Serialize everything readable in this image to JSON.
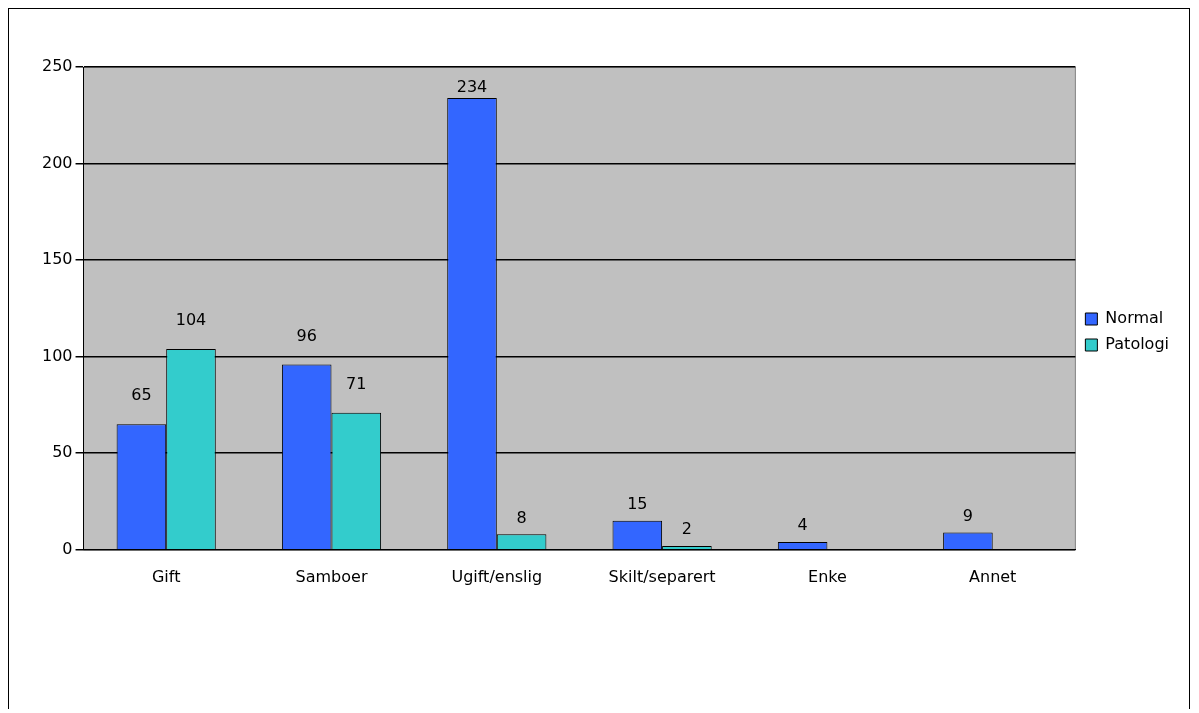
{
  "chart_data": {
    "type": "bar",
    "categories": [
      "Gift",
      "Samboer",
      "Ugift/enslig",
      "Skilt/separert",
      "Enke",
      "Annet"
    ],
    "series": [
      {
        "name": "Normal",
        "color": "#3366ff",
        "values": [
          65,
          96,
          234,
          15,
          4,
          9
        ]
      },
      {
        "name": "Patologi",
        "color": "#33cccc",
        "values": [
          104,
          71,
          8,
          2,
          null,
          null
        ]
      }
    ],
    "ylim": [
      0,
      250
    ],
    "yticks": [
      0,
      50,
      100,
      150,
      200,
      250
    ],
    "grid": "y",
    "legend": "right",
    "data_labels": true
  }
}
